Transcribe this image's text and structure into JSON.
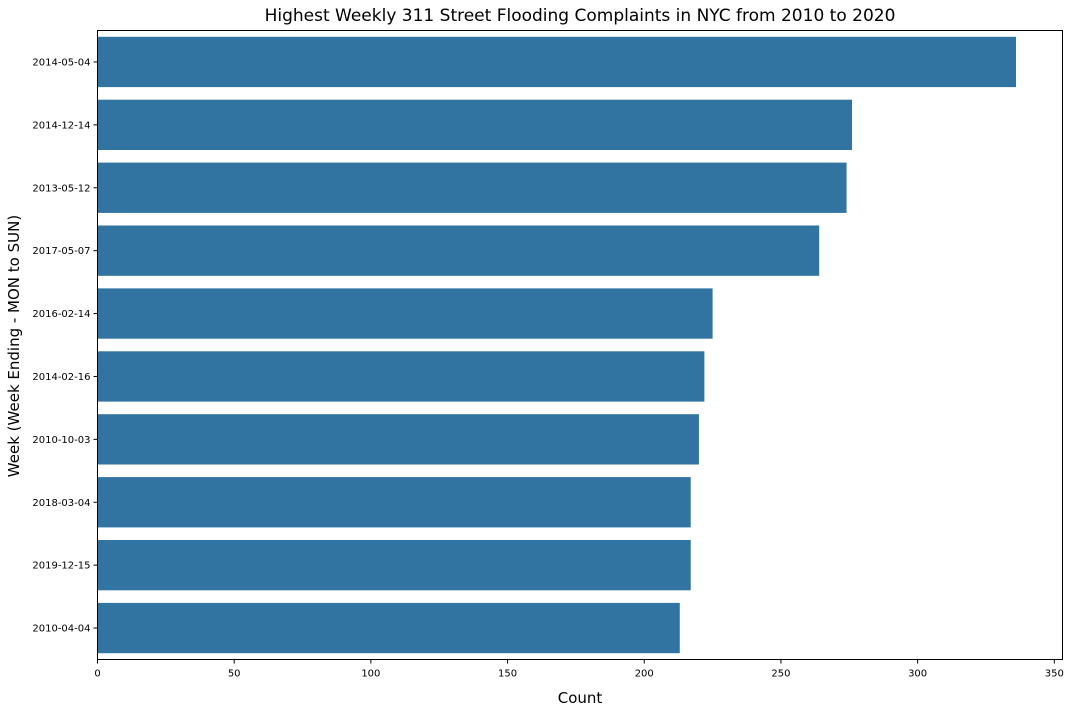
{
  "chart_data": {
    "type": "bar",
    "orientation": "horizontal",
    "title": "Highest Weekly 311 Street Flooding Complaints in NYC from 2010 to 2020",
    "xlabel": "Count",
    "ylabel": "Week (Week Ending - MON to SUN)",
    "categories": [
      "2014-05-04",
      "2014-12-14",
      "2013-05-12",
      "2017-05-07",
      "2016-02-14",
      "2014-02-16",
      "2010-10-03",
      "2018-03-04",
      "2019-12-15",
      "2010-04-04"
    ],
    "values": [
      336,
      276,
      274,
      264,
      225,
      222,
      220,
      217,
      217,
      213
    ],
    "xlim": [
      0,
      353
    ],
    "xticks": [
      0,
      50,
      100,
      150,
      200,
      250,
      300,
      350
    ],
    "xtick_labels": [
      "0",
      "50",
      "100",
      "150",
      "200",
      "250",
      "300",
      "350"
    ],
    "bar_color": "#3274a1",
    "grid": false,
    "legend": "none"
  }
}
